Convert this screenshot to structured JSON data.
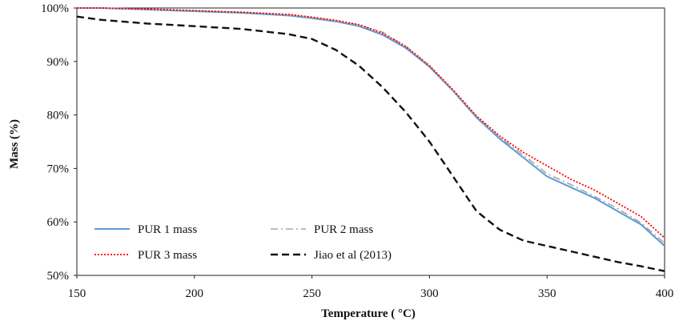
{
  "chart_data": {
    "type": "line",
    "title": "",
    "xlabel": "Temperature ( °C)",
    "ylabel": "Mass (%)",
    "xlim": [
      150,
      400
    ],
    "ylim": [
      50,
      100
    ],
    "x_ticks": [
      150,
      200,
      250,
      300,
      350,
      400
    ],
    "x_tick_labels": [
      "150",
      "200",
      "250",
      "300",
      "350",
      "400"
    ],
    "y_ticks": [
      50,
      60,
      70,
      80,
      90,
      100
    ],
    "y_tick_labels": [
      "50%",
      "60%",
      "70%",
      "80%",
      "90%",
      "100%"
    ],
    "grid": false,
    "legend_position": "bottom-left",
    "x": [
      150,
      160,
      180,
      200,
      220,
      240,
      250,
      260,
      270,
      280,
      290,
      300,
      310,
      320,
      330,
      340,
      350,
      360,
      370,
      380,
      390,
      400
    ],
    "series": [
      {
        "name": "PUR 1 mass",
        "color": "#5b9bd5",
        "dash": "solid",
        "values": [
          100,
          100,
          99.7,
          99.4,
          99.1,
          98.6,
          98.1,
          97.5,
          96.6,
          95.0,
          92.5,
          89.0,
          84.5,
          79.5,
          75.5,
          72.0,
          68.5,
          66.5,
          64.5,
          62.0,
          59.5,
          55.5
        ]
      },
      {
        "name": "PUR 2 mass",
        "color": "#a6a6a6",
        "dash": "dash-dot",
        "values": [
          100,
          100,
          99.7,
          99.5,
          99.2,
          98.7,
          98.2,
          97.6,
          96.8,
          95.5,
          92.8,
          89.2,
          84.5,
          79.7,
          75.8,
          72.5,
          69.0,
          67.0,
          64.8,
          62.5,
          59.8,
          56.0
        ]
      },
      {
        "name": "PUR 3 mass",
        "color": "#ff0000",
        "dash": "dotted",
        "values": [
          100,
          100,
          99.8,
          99.5,
          99.2,
          98.8,
          98.3,
          97.7,
          96.9,
          95.3,
          92.8,
          89.2,
          84.7,
          79.8,
          76.0,
          73.0,
          70.5,
          68.0,
          66.0,
          63.5,
          61.0,
          57.0
        ]
      },
      {
        "name": "Jiao et al (2013)",
        "color": "#111111",
        "dash": "dashed",
        "values": [
          98.4,
          97.8,
          97.1,
          96.6,
          96.1,
          95.1,
          94.2,
          92.2,
          89.2,
          85.2,
          80.5,
          75.0,
          68.5,
          62.0,
          58.5,
          56.5,
          55.5,
          54.5,
          53.5,
          52.5,
          51.7,
          50.8
        ]
      }
    ]
  }
}
